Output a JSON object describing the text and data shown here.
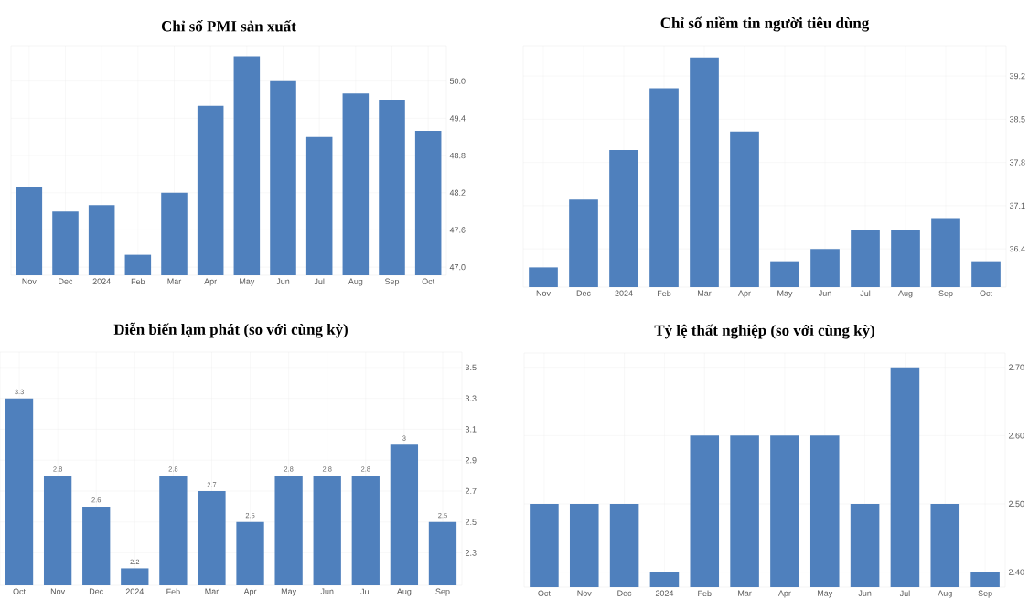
{
  "chart_data": [
    {
      "type": "bar",
      "title": "Chỉ số PMI sản xuất",
      "categories": [
        "Nov",
        "Dec",
        "2024",
        "Feb",
        "Mar",
        "Apr",
        "May",
        "Jun",
        "Jul",
        "Aug",
        "Sep",
        "Oct"
      ],
      "values": [
        48.3,
        47.9,
        48.0,
        47.2,
        48.2,
        49.6,
        50.4,
        50.0,
        49.1,
        49.8,
        49.7,
        49.2
      ],
      "color": "#4f80bd",
      "ylim": [
        46.87,
        50.57
      ],
      "yticks": [
        {
          "value": 47.0,
          "label": "47.0"
        },
        47.6,
        48.2,
        48.8,
        49.4,
        {
          "value": 50.0,
          "label": "50.0"
        }
      ],
      "grid": true
    },
    {
      "type": "bar",
      "title": "Chỉ số niềm tin người tiêu dùng",
      "categories": [
        "Nov",
        "Dec",
        "2024",
        "Feb",
        "Mar",
        "Apr",
        "May",
        "Jun",
        "Jul",
        "Aug",
        "Sep",
        "Oct"
      ],
      "values": [
        36.1,
        37.2,
        38.0,
        39.0,
        39.5,
        38.3,
        36.2,
        36.4,
        36.7,
        36.7,
        36.9,
        36.2
      ],
      "color": "#4f80bd",
      "ylim": [
        35.78,
        39.69
      ],
      "yticks": [
        36.4,
        37.1,
        37.8,
        38.5,
        39.2
      ],
      "grid": true
    },
    {
      "type": "bar",
      "title": "Diễn biến lạm phát (so với cùng kỳ)",
      "categories": [
        "Oct",
        "Nov",
        "Dec",
        "2024",
        "Feb",
        "Mar",
        "Apr",
        "May",
        "Jun",
        "Jul",
        "Aug",
        "Sep"
      ],
      "values": [
        3.3,
        2.8,
        2.6,
        2.2,
        2.8,
        2.7,
        2.5,
        2.8,
        2.8,
        2.8,
        3,
        2.5
      ],
      "color": "#4f80bd",
      "ylim": [
        2.09,
        3.6
      ],
      "yticks": [
        2.3,
        2.5,
        2.7,
        2.9,
        3.1,
        3.3,
        3.5
      ],
      "grid": true,
      "data_labels": true
    },
    {
      "type": "bar",
      "title": "Tỷ lệ thất nghiệp (so với cùng kỳ)",
      "categories": [
        "Oct",
        "Nov",
        "Dec",
        "2024",
        "Feb",
        "Mar",
        "Apr",
        "May",
        "Jun",
        "Jul",
        "Aug",
        "Sep"
      ],
      "values": [
        2.5,
        2.5,
        2.5,
        2.4,
        2.6,
        2.6,
        2.6,
        2.6,
        2.5,
        2.7,
        2.5,
        2.4
      ],
      "color": "#4f80bd",
      "ylim": [
        2.378,
        2.721
      ],
      "yticks": [
        {
          "value": 2.4,
          "label": "2.40"
        },
        {
          "value": 2.5,
          "label": "2.50"
        },
        {
          "value": 2.6,
          "label": "2.60"
        },
        {
          "value": 2.7,
          "label": "2.70"
        }
      ],
      "grid": true
    }
  ]
}
